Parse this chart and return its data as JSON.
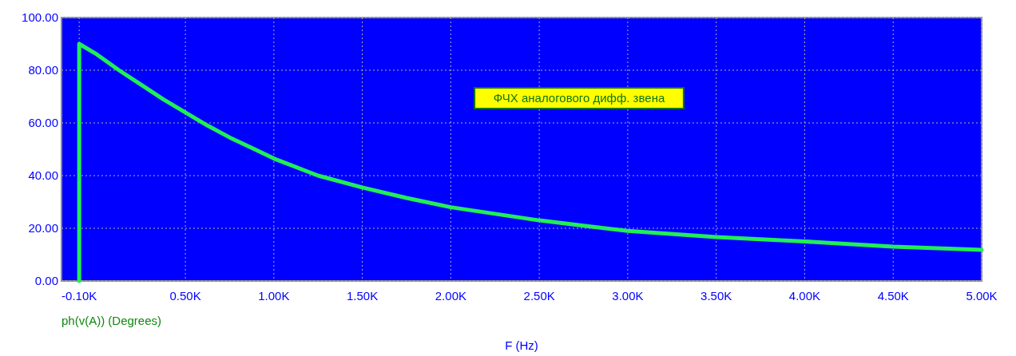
{
  "chart_data": {
    "type": "line",
    "xlabel": "F (Hz)",
    "annotations": [
      "ФЧХ аналогового дифф. звена"
    ],
    "xlim": [
      -200,
      5000
    ],
    "ylim": [
      0,
      100
    ],
    "xticks": [
      {
        "value": -100,
        "label": "-0.10K"
      },
      {
        "value": 500,
        "label": "0.50K"
      },
      {
        "value": 1000,
        "label": "1.00K"
      },
      {
        "value": 1500,
        "label": "1.50K"
      },
      {
        "value": 2000,
        "label": "2.00K"
      },
      {
        "value": 2500,
        "label": "2.50K"
      },
      {
        "value": 3000,
        "label": "3.00K"
      },
      {
        "value": 3500,
        "label": "3.50K"
      },
      {
        "value": 4000,
        "label": "4.00K"
      },
      {
        "value": 4500,
        "label": "4.50K"
      },
      {
        "value": 5000,
        "label": "5.00K"
      }
    ],
    "yticks": [
      {
        "value": 0,
        "label": "0.00"
      },
      {
        "value": 20,
        "label": "20.00"
      },
      {
        "value": 40,
        "label": "40.00"
      },
      {
        "value": 60,
        "label": "60.00"
      },
      {
        "value": 80,
        "label": "80.00"
      },
      {
        "value": 100,
        "label": "100.00"
      }
    ],
    "grid": true,
    "legend": "bottom left",
    "marker": "none",
    "line_style": "solid",
    "series": [
      {
        "name": "ph(v(A)) (Degrees)",
        "color": "#22ee55",
        "x": [
          -100,
          -100,
          0,
          125,
          250,
          375,
          500,
          625,
          750,
          875,
          1000,
          1250,
          1500,
          1750,
          2000,
          2250,
          2500,
          2750,
          3000,
          3500,
          4000,
          4500,
          5000
        ],
        "values": [
          0,
          90,
          86,
          80,
          74.5,
          69,
          64,
          59,
          54.5,
          50.5,
          46.5,
          40,
          35.5,
          31.5,
          28,
          25.5,
          23,
          21,
          19,
          16.7,
          15,
          13,
          11.8
        ]
      }
    ]
  }
}
